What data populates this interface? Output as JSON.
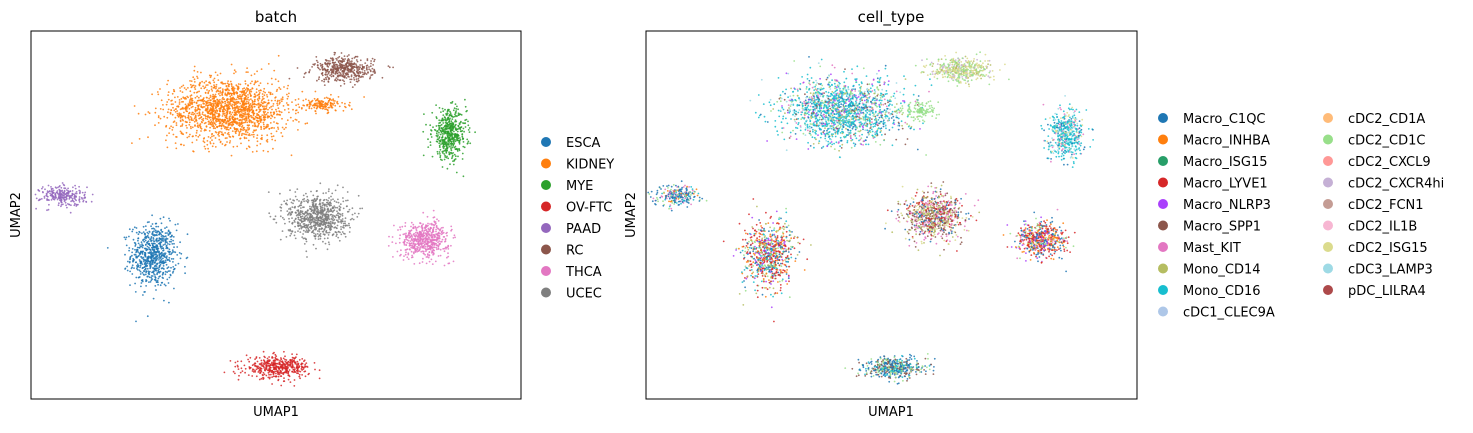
{
  "chart_data": [
    {
      "type": "scatter",
      "title": "batch",
      "xlabel": "UMAP1",
      "ylabel": "UMAP2",
      "legend_position": "right",
      "grid": false,
      "ticks": false,
      "xlim": [
        -12,
        14
      ],
      "ylim": [
        -10,
        11
      ],
      "series": [
        {
          "name": "ESCA",
          "color": "#1f77b4",
          "clusters": [
            {
              "center": [
                -5.5,
                -1.8
              ],
              "spread": [
                1.2,
                1.8
              ],
              "n": 700
            }
          ]
        },
        {
          "name": "KIDNEY",
          "color": "#ff7f0e",
          "clusters": [
            {
              "center": [
                -1.5,
                6.5
              ],
              "spread": [
                3.2,
                1.8
              ],
              "n": 1600
            },
            {
              "center": [
                3.5,
                6.8
              ],
              "spread": [
                1.2,
                0.4
              ],
              "n": 150
            }
          ]
        },
        {
          "name": "MYE",
          "color": "#2ca02c",
          "clusters": [
            {
              "center": [
                10.2,
                5.1
              ],
              "spread": [
                0.9,
                1.4
              ],
              "n": 500
            }
          ]
        },
        {
          "name": "OV-FTC",
          "color": "#d62728",
          "clusters": [
            {
              "center": [
                1.1,
                -8.2
              ],
              "spread": [
                1.7,
                0.6
              ],
              "n": 450
            }
          ]
        },
        {
          "name": "PAAD",
          "color": "#9467bd",
          "clusters": [
            {
              "center": [
                -10.3,
                1.6
              ],
              "spread": [
                1.2,
                0.6
              ],
              "n": 250
            }
          ]
        },
        {
          "name": "RC",
          "color": "#8c564b",
          "clusters": [
            {
              "center": [
                4.6,
                8.8
              ],
              "spread": [
                1.6,
                0.7
              ],
              "n": 450
            }
          ]
        },
        {
          "name": "THCA",
          "color": "#e377c2",
          "clusters": [
            {
              "center": [
                8.9,
                -0.9
              ],
              "spread": [
                1.3,
                1.0
              ],
              "n": 550
            }
          ]
        },
        {
          "name": "UCEC",
          "color": "#7f7f7f",
          "clusters": [
            {
              "center": [
                3.2,
                0.4
              ],
              "spread": [
                1.6,
                1.3
              ],
              "n": 750
            }
          ]
        }
      ]
    },
    {
      "type": "scatter",
      "title": "cell_type",
      "xlabel": "UMAP1",
      "ylabel": "UMAP2",
      "legend_position": "right",
      "grid": false,
      "ticks": false,
      "xlim": [
        -12,
        14
      ],
      "ylim": [
        -10,
        11
      ],
      "clusters": [
        {
          "center": [
            -1.5,
            6.5
          ],
          "spread": [
            3.2,
            1.8
          ],
          "n": 1700,
          "mix": [
            [
              "Mono_CD16",
              0.45
            ],
            [
              "Macro_C1QC",
              0.1
            ],
            [
              "Mono_CD14",
              0.08
            ],
            [
              "cDC2_CD1C",
              0.1
            ],
            [
              "Mast_KIT",
              0.07
            ],
            [
              "Macro_NLRP3",
              0.05
            ],
            [
              "cDC3_LAMP3",
              0.1
            ],
            [
              "Macro_SPP1",
              0.05
            ]
          ]
        },
        {
          "center": [
            4.6,
            8.8
          ],
          "spread": [
            1.6,
            0.7
          ],
          "n": 450,
          "mix": [
            [
              "cDC2_ISG15",
              0.4
            ],
            [
              "cDC2_CD1C",
              0.3
            ],
            [
              "cDC2_CXCR4hi",
              0.15
            ],
            [
              "Mono_CD14",
              0.15
            ]
          ]
        },
        {
          "center": [
            2.5,
            6.5
          ],
          "spread": [
            1.0,
            0.5
          ],
          "n": 120,
          "mix": [
            [
              "cDC2_CD1C",
              1.0
            ]
          ]
        },
        {
          "center": [
            10.2,
            5.1
          ],
          "spread": [
            0.9,
            1.4
          ],
          "n": 500,
          "mix": [
            [
              "Mono_CD16",
              0.5
            ],
            [
              "cDC3_LAMP3",
              0.15
            ],
            [
              "cDC2_ISG15",
              0.15
            ],
            [
              "Macro_C1QC",
              0.1
            ],
            [
              "Mast_KIT",
              0.1
            ]
          ]
        },
        {
          "center": [
            -10.3,
            1.6
          ],
          "spread": [
            1.2,
            0.6
          ],
          "n": 250,
          "mix": [
            [
              "Macro_C1QC",
              0.45
            ],
            [
              "Mast_KIT",
              0.2
            ],
            [
              "Macro_INHBA",
              0.1
            ],
            [
              "cDC2_CD1C",
              0.15
            ],
            [
              "Mono_CD16",
              0.1
            ]
          ]
        },
        {
          "center": [
            -5.5,
            -1.8
          ],
          "spread": [
            1.3,
            1.9
          ],
          "n": 750,
          "mix": [
            [
              "Macro_LYVE1",
              0.3
            ],
            [
              "Macro_INHBA",
              0.15
            ],
            [
              "Macro_C1QC",
              0.15
            ],
            [
              "Macro_NLRP3",
              0.1
            ],
            [
              "Mono_CD14",
              0.1
            ],
            [
              "Mono_CD16",
              0.1
            ],
            [
              "cDC2_CD1C",
              0.1
            ]
          ]
        },
        {
          "center": [
            3.2,
            0.4
          ],
          "spread": [
            1.6,
            1.3
          ],
          "n": 800,
          "mix": [
            [
              "Macro_SPP1",
              0.25
            ],
            [
              "Mast_KIT",
              0.2
            ],
            [
              "Macro_LYVE1",
              0.15
            ],
            [
              "Mono_CD14",
              0.15
            ],
            [
              "Macro_C1QC",
              0.1
            ],
            [
              "cDC2_ISG15",
              0.15
            ]
          ]
        },
        {
          "center": [
            8.9,
            -0.9
          ],
          "spread": [
            1.3,
            1.0
          ],
          "n": 550,
          "mix": [
            [
              "Macro_LYVE1",
              0.3
            ],
            [
              "Macro_INHBA",
              0.2
            ],
            [
              "Macro_C1QC",
              0.2
            ],
            [
              "Macro_NLRP3",
              0.1
            ],
            [
              "Mast_KIT",
              0.1
            ],
            [
              "cDC2_CD1C",
              0.1
            ]
          ]
        },
        {
          "center": [
            1.1,
            -8.2
          ],
          "spread": [
            1.7,
            0.6
          ],
          "n": 450,
          "mix": [
            [
              "Macro_C1QC",
              0.4
            ],
            [
              "Macro_SPP1",
              0.25
            ],
            [
              "cDC2_CD1C",
              0.2
            ],
            [
              "Mono_CD16",
              0.15
            ]
          ]
        }
      ],
      "series": [
        {
          "name": "Macro_C1QC",
          "color": "#1f77b4"
        },
        {
          "name": "Macro_INHBA",
          "color": "#ff7f0e"
        },
        {
          "name": "Macro_ISG15",
          "color": "#279e68"
        },
        {
          "name": "Macro_LYVE1",
          "color": "#d62728"
        },
        {
          "name": "Macro_NLRP3",
          "color": "#aa40fc"
        },
        {
          "name": "Macro_SPP1",
          "color": "#8c564b"
        },
        {
          "name": "Mast_KIT",
          "color": "#e377c2"
        },
        {
          "name": "Mono_CD14",
          "color": "#b5bd61"
        },
        {
          "name": "Mono_CD16",
          "color": "#17becf"
        },
        {
          "name": "cDC1_CLEC9A",
          "color": "#aec7e8"
        },
        {
          "name": "cDC2_CD1A",
          "color": "#ffbb78"
        },
        {
          "name": "cDC2_CD1C",
          "color": "#98df8a"
        },
        {
          "name": "cDC2_CXCL9",
          "color": "#ff9896"
        },
        {
          "name": "cDC2_CXCR4hi",
          "color": "#c5b0d5"
        },
        {
          "name": "cDC2_FCN1",
          "color": "#c49c94"
        },
        {
          "name": "cDC2_IL1B",
          "color": "#f7b6d2"
        },
        {
          "name": "cDC2_ISG15",
          "color": "#dbdb8d"
        },
        {
          "name": "cDC3_LAMP3",
          "color": "#9edae5"
        },
        {
          "name": "pDC_LILRA4",
          "color": "#ad494a"
        }
      ]
    }
  ]
}
